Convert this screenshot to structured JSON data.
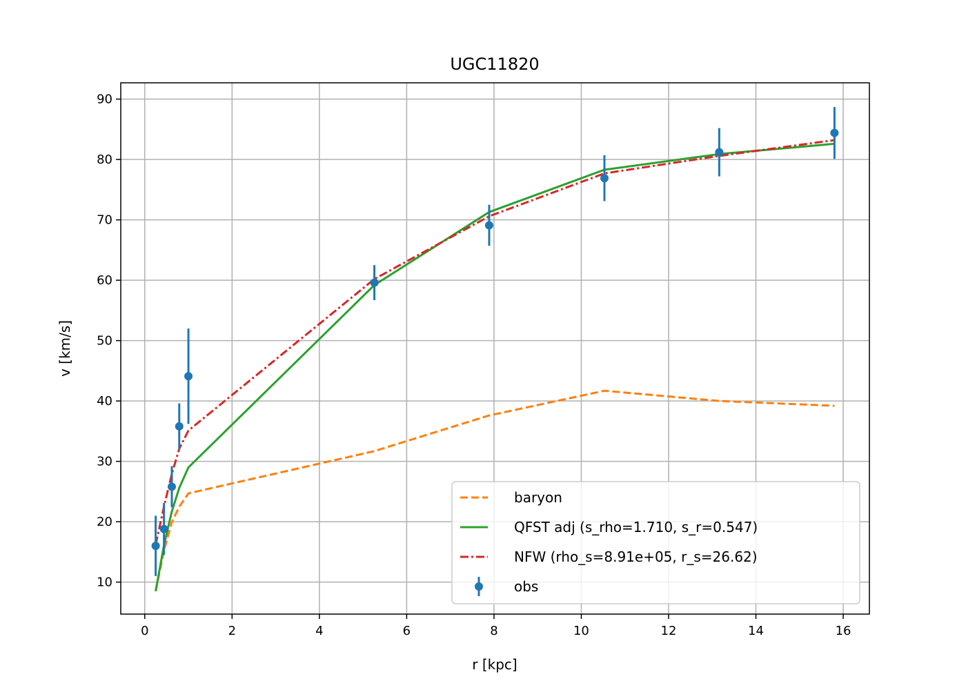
{
  "chart_data": {
    "type": "line",
    "title": "UGC11820",
    "xlabel": "r [kpc]",
    "ylabel": "v [km/s]",
    "xlim": [
      -0.55,
      16.6
    ],
    "ylim": [
      4.7,
      92.7
    ],
    "xticks": [
      0,
      2,
      4,
      6,
      8,
      10,
      12,
      14,
      16
    ],
    "yticks": [
      10,
      20,
      30,
      40,
      50,
      60,
      70,
      80,
      90
    ],
    "grid": true,
    "legend_position": "lower right",
    "series": [
      {
        "name": "baryon",
        "kind": "line",
        "style": "dashed",
        "color": "#ff7f0e",
        "x": [
          0.25,
          0.44,
          0.62,
          0.79,
          1.0,
          5.26,
          7.89,
          10.53,
          13.16,
          15.8
        ],
        "y": [
          8.5,
          15.2,
          19.9,
          22.5,
          24.7,
          31.7,
          37.6,
          41.7,
          40.0,
          39.2
        ]
      },
      {
        "name": "QFST adj (s_rho=1.710, s_r=0.547)",
        "kind": "line",
        "style": "solid",
        "color": "#2ca02c",
        "x": [
          0.25,
          0.44,
          0.62,
          0.79,
          1.0,
          5.26,
          7.89,
          10.53,
          13.16,
          15.8
        ],
        "y": [
          8.5,
          16.1,
          21.7,
          25.6,
          29.0,
          59.2,
          71.3,
          78.3,
          80.9,
          82.6
        ]
      },
      {
        "name": "NFW (rho_s=8.91e+05, r_s=26.62)",
        "kind": "line",
        "style": "dashdot",
        "color": "#d62728",
        "x": [
          0.25,
          0.44,
          0.62,
          0.79,
          1.0,
          5.26,
          7.89,
          10.53,
          13.16,
          15.8
        ],
        "y": [
          16.2,
          22.5,
          27.9,
          32.1,
          35.1,
          60.2,
          70.6,
          77.7,
          80.6,
          83.2
        ]
      },
      {
        "name": "obs",
        "kind": "errorbar",
        "color": "#1f77b4",
        "x": [
          0.25,
          0.44,
          0.62,
          0.79,
          1.0,
          5.26,
          7.89,
          10.53,
          13.16,
          15.8
        ],
        "y": [
          16.0,
          18.8,
          25.8,
          35.8,
          44.1,
          59.6,
          69.1,
          76.9,
          81.2,
          84.4
        ],
        "err": [
          5.0,
          4.3,
          3.4,
          3.8,
          7.9,
          2.9,
          3.4,
          3.8,
          4.0,
          4.3
        ]
      }
    ]
  }
}
